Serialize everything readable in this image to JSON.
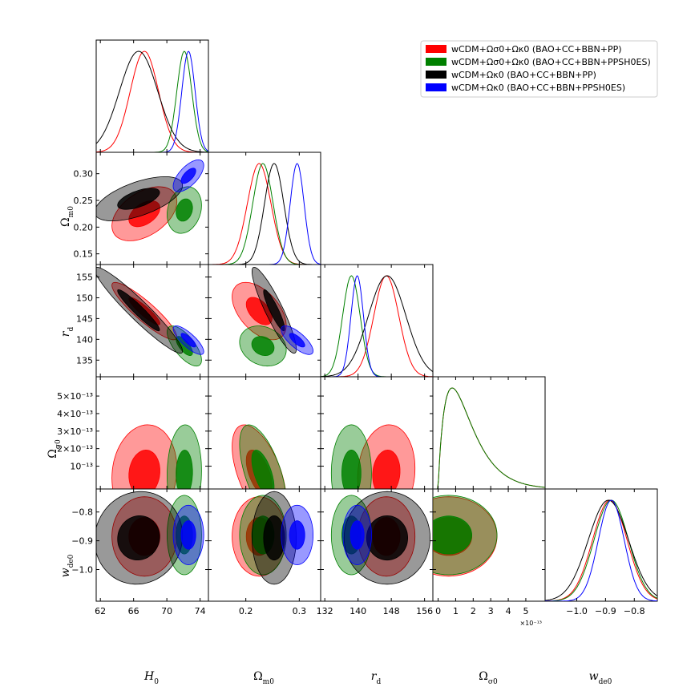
{
  "chart_data": {
    "type": "corner",
    "parameters": [
      {
        "key": "H0",
        "label": "H₀",
        "ticks": [
          "62",
          "66",
          "70",
          "74"
        ],
        "tick_values": [
          62,
          66,
          70,
          74
        ],
        "range": [
          61.5,
          75
        ]
      },
      {
        "key": "Om0",
        "label": "Ωm0",
        "ticks": [
          "0.2",
          "0.3"
        ],
        "y_ticks": [
          "0.15",
          "0.20",
          "0.25",
          "0.30"
        ],
        "tick_values": [
          0.2,
          0.3
        ],
        "y_tick_values": [
          0.15,
          0.2,
          0.25,
          0.3
        ],
        "range": [
          0.13,
          0.34
        ]
      },
      {
        "key": "rd",
        "label": "rd",
        "ticks": [
          "132",
          "140",
          "148",
          "156"
        ],
        "y_ticks": [
          "135",
          "140",
          "145",
          "150",
          "155"
        ],
        "tick_values": [
          132,
          140,
          148,
          156
        ],
        "y_tick_values": [
          135,
          140,
          145,
          150,
          155
        ],
        "range": [
          131,
          158
        ]
      },
      {
        "key": "Os0",
        "label": "Ωσ0",
        "ticks": [
          "0",
          "1",
          "2",
          "3",
          "4",
          "5"
        ],
        "y_ticks": [
          "10⁻¹³",
          "2×10⁻¹³",
          "3×10⁻¹³",
          "4×10⁻¹³",
          "5×10⁻¹³"
        ],
        "tick_values": [
          0,
          1,
          2,
          3,
          4,
          5
        ],
        "y_tick_values": [
          1,
          2,
          3,
          4,
          5
        ],
        "range": [
          -0.3,
          6.1
        ],
        "exponent": "×10⁻¹³"
      },
      {
        "key": "wde0",
        "label": "wde0",
        "ticks": [
          "−1.0",
          "−0.9",
          "−0.8"
        ],
        "tick_values": [
          -1.0,
          -0.9,
          -0.8
        ],
        "range": [
          -1.11,
          -0.72
        ]
      }
    ],
    "series": [
      {
        "name": "wCDM+Ωσ0+Ωκ0 (BAO+CC+BBN+PP)",
        "color": "#ff0000",
        "means": [
          67.3,
          0.225,
          146.8,
          0.6,
          -0.885
        ],
        "sigmas": [
          1.7,
          0.022,
          3.0,
          1.2,
          0.06
        ]
      },
      {
        "name": "wCDM+Ωσ0+Ωκ0 (BAO+CC+BBN+PPSH0ES)",
        "color": "#008000",
        "means": [
          72.1,
          0.232,
          138.4,
          0.6,
          -0.88
        ],
        "sigmas": [
          0.9,
          0.019,
          2.1,
          1.2,
          0.06
        ]
      },
      {
        "name": "wCDM+Ωκ0 (BAO+CC+BBN+PP)",
        "color": "#000000",
        "means": [
          66.6,
          0.253,
          147.0,
          null,
          -0.89
        ],
        "sigmas": [
          2.3,
          0.018,
          4.5,
          null,
          0.07
        ]
      },
      {
        "name": "wCDM+Ωκ0 (BAO+CC+BBN+PPSH0ES)",
        "color": "#0000ff",
        "means": [
          72.6,
          0.296,
          139.8,
          null,
          -0.88
        ],
        "sigmas": [
          0.8,
          0.013,
          1.5,
          null,
          0.045
        ]
      }
    ],
    "legend_position": "top-right",
    "grid": false
  }
}
